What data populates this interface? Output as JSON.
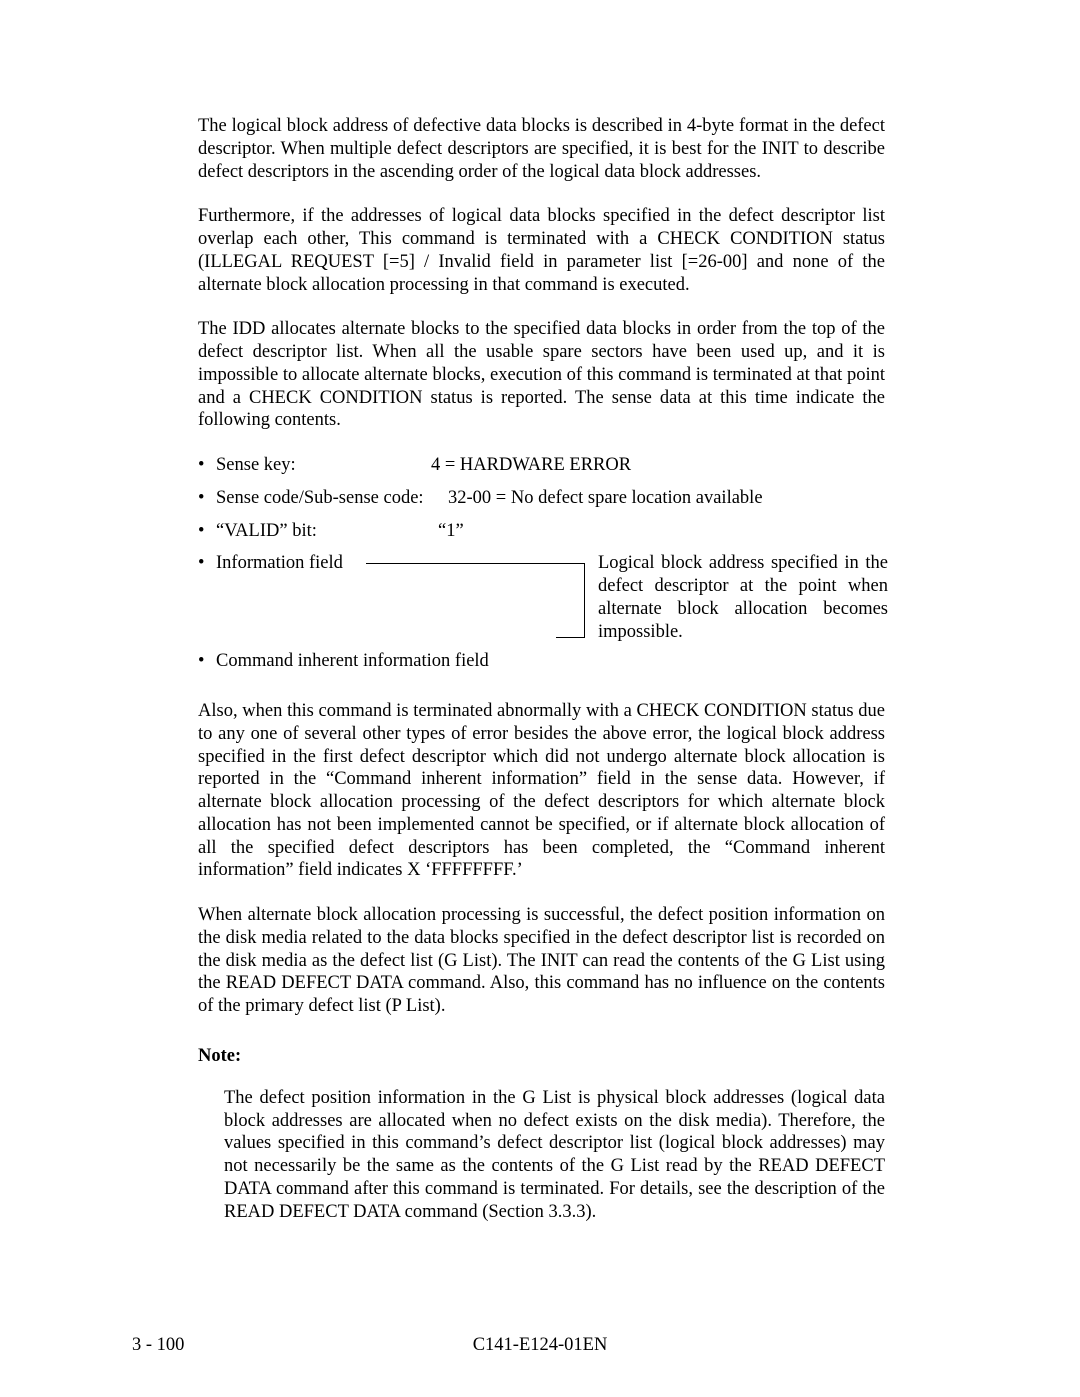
{
  "para1": "The logical block address of defective data blocks is described in 4-byte format in the defect descriptor.  When multiple defect descriptors are specified, it is best for the INIT to describe defect descriptors in the ascending order of the logical data block addresses.",
  "para2": "Furthermore, if the addresses of logical data blocks specified in the defect descriptor list overlap each other, This command is terminated with a CHECK CONDITION status (ILLEGAL REQUEST [=5] / Invalid field in parameter list [=26-00] and none of the alternate block allocation processing in that command is executed.",
  "para3": "The IDD allocates alternate blocks to the specified data blocks in order from the top of the defect descriptor list.  When all the usable spare sectors have been used up, and it is impossible to allocate alternate blocks, execution of this command is terminated at that point and a CHECK CONDITION status is reported.  The sense data at this time indicate the following contents.",
  "sense": {
    "bullet": "•",
    "row1_label": "Sense key:",
    "row1_value": "4 = HARDWARE ERROR",
    "row2_label": "Sense code/Sub-sense code:",
    "row2_value": "32-00 = No defect spare location available",
    "row3_label": "“VALID” bit:",
    "row3_value": "“1”",
    "row4_label": "Information field",
    "row4_desc": "Logical block address specified in the defect descriptor at the point when alternate block allocation becomes impossible.",
    "row5_label": "Command inherent information field"
  },
  "para4": "Also, when this command is terminated abnormally with a CHECK CONDITION status due to any one of several other types of error besides the above error, the logical block address specified in the first defect descriptor which did not undergo alternate block allocation is reported in the “Command inherent information” field in the sense data.  However, if alternate block allocation processing of the defect descriptors for which alternate block allocation has not been implemented cannot be specified, or if alternate block allocation of all the specified defect descriptors has been completed, the “Command inherent information” field indicates X ‘FFFFFFFF.’",
  "para5": "When alternate block allocation processing is successful, the defect position information on the disk media related to the data blocks specified in the defect descriptor list is recorded on the disk media as the defect list (G List).  The INIT can read the contents of the G List using the READ DEFECT DATA command.  Also, this command has no influence on the contents of the primary defect list (P List).",
  "note_heading": "Note:",
  "note_body": "The defect position information in the G List is physical block addresses (logical data block addresses are allocated when no defect exists on the disk media).  Therefore, the values specified in this command’s defect descriptor list (logical block addresses) may not necessarily be the same as the contents of the G List read by the READ DEFECT DATA command after this command is terminated.  For details, see the description of the READ DEFECT DATA command (Section 3.3.3).",
  "footer_left": "3 - 100",
  "footer_center": "C141-E124-01EN"
}
